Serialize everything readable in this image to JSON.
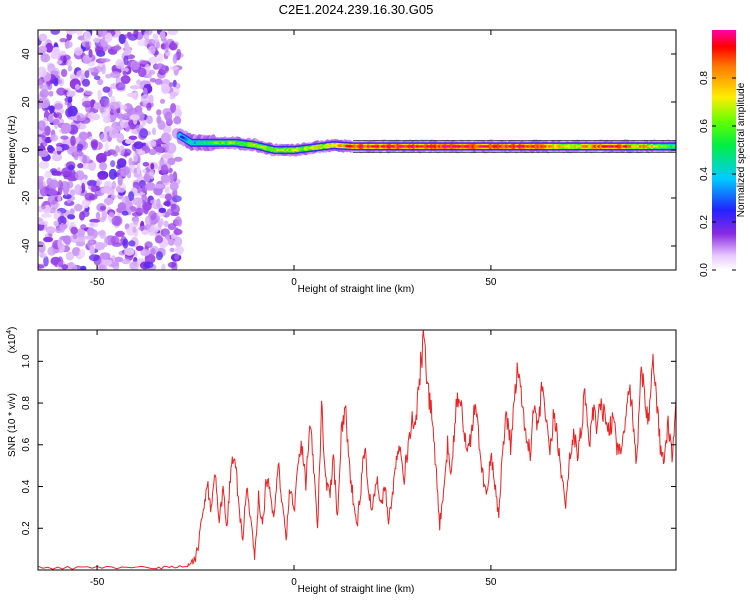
{
  "title": "C2E1.2024.239.16.30.G05",
  "chart_data": [
    {
      "type": "heatmap",
      "xlabel": "Height of straight line (km)",
      "ylabel": "Frequency (Hz)",
      "xlim": [
        -65,
        97
      ],
      "ylim": [
        -50,
        50
      ],
      "xticks": [
        -50,
        0,
        50
      ],
      "yticks": [
        -40,
        -20,
        0,
        20,
        40
      ],
      "colorbar": {
        "label": "Normalized spectral amplitude",
        "range": [
          0.0,
          1.0
        ],
        "ticks": [
          "0.0",
          "0.2",
          "0.4",
          "0.6",
          "0.8"
        ],
        "colormap": "rainbow (white-violet-blue-cyan-green-yellow-red)"
      },
      "noise_region_x": [
        -65,
        -29
      ],
      "signal_line": {
        "x_range": [
          -29,
          97
        ],
        "frequency_hz": [
          {
            "x": -29,
            "f": 6
          },
          {
            "x": -26,
            "f": 3
          },
          {
            "x": -20,
            "f": 3
          },
          {
            "x": -15,
            "f": 3
          },
          {
            "x": -10,
            "f": 2
          },
          {
            "x": -5,
            "f": 0
          },
          {
            "x": 0,
            "f": 0
          },
          {
            "x": 5,
            "f": 1
          },
          {
            "x": 10,
            "f": 2
          },
          {
            "x": 15,
            "f": 1.5
          },
          {
            "x": 30,
            "f": 1.5
          },
          {
            "x": 60,
            "f": 1.5
          },
          {
            "x": 90,
            "f": 1.5
          },
          {
            "x": 97,
            "f": 1.5
          }
        ],
        "amplitude": [
          {
            "x": -29,
            "a": 0.3
          },
          {
            "x": -20,
            "a": 0.55
          },
          {
            "x": -10,
            "a": 0.65
          },
          {
            "x": 0,
            "a": 0.65
          },
          {
            "x": 10,
            "a": 0.75
          },
          {
            "x": 15,
            "a": 0.92
          },
          {
            "x": 60,
            "a": 0.95
          },
          {
            "x": 70,
            "a": 0.7
          },
          {
            "x": 80,
            "a": 0.95
          },
          {
            "x": 90,
            "a": 0.75
          },
          {
            "x": 97,
            "a": 0.5
          }
        ]
      }
    },
    {
      "type": "line",
      "xlabel": "Height of straight line (km)",
      "ylabel": "SNR (10 * v/v)",
      "y_scale_label": "(x10",
      "y_scale_exponent": "4",
      "xlim": [
        -65,
        97
      ],
      "ylim": [
        0,
        1.15
      ],
      "xticks": [
        -50,
        0,
        50
      ],
      "yticks": [
        0.2,
        0.4,
        0.6,
        0.8,
        1.0
      ],
      "series": [
        {
          "color": "#ee2222",
          "points": [
            [
              -65,
              0.01
            ],
            [
              -50,
              0.01
            ],
            [
              -35,
              0.01
            ],
            [
              -27,
              0.02
            ],
            [
              -25,
              0.05
            ],
            [
              -24,
              0.15
            ],
            [
              -23,
              0.3
            ],
            [
              -22,
              0.42
            ],
            [
              -21,
              0.28
            ],
            [
              -20,
              0.45
            ],
            [
              -19,
              0.25
            ],
            [
              -18,
              0.38
            ],
            [
              -17,
              0.2
            ],
            [
              -16,
              0.5
            ],
            [
              -15,
              0.56
            ],
            [
              -14,
              0.3
            ],
            [
              -13,
              0.15
            ],
            [
              -12,
              0.4
            ],
            [
              -11,
              0.25
            ],
            [
              -10,
              0.05
            ],
            [
              -9,
              0.35
            ],
            [
              -8,
              0.2
            ],
            [
              -7,
              0.45
            ],
            [
              -6,
              0.35
            ],
            [
              -5,
              0.25
            ],
            [
              -4,
              0.55
            ],
            [
              -3,
              0.3
            ],
            [
              -2,
              0.15
            ],
            [
              -1,
              0.4
            ],
            [
              0,
              0.28
            ],
            [
              1,
              0.5
            ],
            [
              2,
              0.6
            ],
            [
              3,
              0.4
            ],
            [
              4,
              0.7
            ],
            [
              5,
              0.5
            ],
            [
              6,
              0.2
            ],
            [
              7,
              0.78
            ],
            [
              8,
              0.45
            ],
            [
              9,
              0.35
            ],
            [
              10,
              0.55
            ],
            [
              11,
              0.25
            ],
            [
              12,
              0.65
            ],
            [
              13,
              0.8
            ],
            [
              14,
              0.5
            ],
            [
              15,
              0.35
            ],
            [
              16,
              0.2
            ],
            [
              17,
              0.4
            ],
            [
              18,
              0.6
            ],
            [
              19,
              0.35
            ],
            [
              20,
              0.3
            ],
            [
              21,
              0.45
            ],
            [
              22,
              0.3
            ],
            [
              23,
              0.4
            ],
            [
              24,
              0.25
            ],
            [
              25,
              0.35
            ],
            [
              26,
              0.55
            ],
            [
              27,
              0.62
            ],
            [
              28,
              0.45
            ],
            [
              29,
              0.6
            ],
            [
              30,
              0.72
            ],
            [
              31,
              0.7
            ],
            [
              32,
              0.95
            ],
            [
              33,
              1.12
            ],
            [
              34,
              0.85
            ],
            [
              35,
              0.75
            ],
            [
              36,
              0.5
            ],
            [
              37,
              0.22
            ],
            [
              38,
              0.35
            ],
            [
              39,
              0.6
            ],
            [
              40,
              0.45
            ],
            [
              41,
              0.75
            ],
            [
              42,
              0.85
            ],
            [
              43,
              0.7
            ],
            [
              44,
              0.55
            ],
            [
              45,
              0.65
            ],
            [
              46,
              0.8
            ],
            [
              47,
              0.6
            ],
            [
              48,
              0.45
            ],
            [
              49,
              0.35
            ],
            [
              50,
              0.55
            ],
            [
              51,
              0.4
            ],
            [
              52,
              0.25
            ],
            [
              53,
              0.6
            ],
            [
              54,
              0.75
            ],
            [
              55,
              0.6
            ],
            [
              56,
              0.85
            ],
            [
              57,
              0.98
            ],
            [
              58,
              0.75
            ],
            [
              59,
              0.65
            ],
            [
              60,
              0.55
            ],
            [
              61,
              0.8
            ],
            [
              62,
              0.65
            ],
            [
              63,
              0.9
            ],
            [
              64,
              0.7
            ],
            [
              65,
              0.55
            ],
            [
              66,
              0.75
            ],
            [
              67,
              0.62
            ],
            [
              68,
              0.45
            ],
            [
              69,
              0.3
            ],
            [
              70,
              0.55
            ],
            [
              71,
              0.65
            ],
            [
              72,
              0.55
            ],
            [
              73,
              0.7
            ],
            [
              74,
              0.85
            ],
            [
              75,
              0.6
            ],
            [
              76,
              0.75
            ],
            [
              77,
              0.68
            ],
            [
              78,
              0.8
            ],
            [
              79,
              0.72
            ],
            [
              80,
              0.65
            ],
            [
              81,
              0.75
            ],
            [
              82,
              0.6
            ],
            [
              83,
              0.55
            ],
            [
              84,
              0.7
            ],
            [
              85,
              0.9
            ],
            [
              86,
              0.75
            ],
            [
              87,
              0.5
            ],
            [
              88,
              0.95
            ],
            [
              89,
              0.85
            ],
            [
              90,
              0.7
            ],
            [
              91,
              1.0
            ],
            [
              92,
              0.85
            ],
            [
              93,
              0.6
            ],
            [
              94,
              0.5
            ],
            [
              95,
              0.72
            ],
            [
              96,
              0.55
            ],
            [
              97,
              0.82
            ]
          ]
        }
      ]
    }
  ]
}
